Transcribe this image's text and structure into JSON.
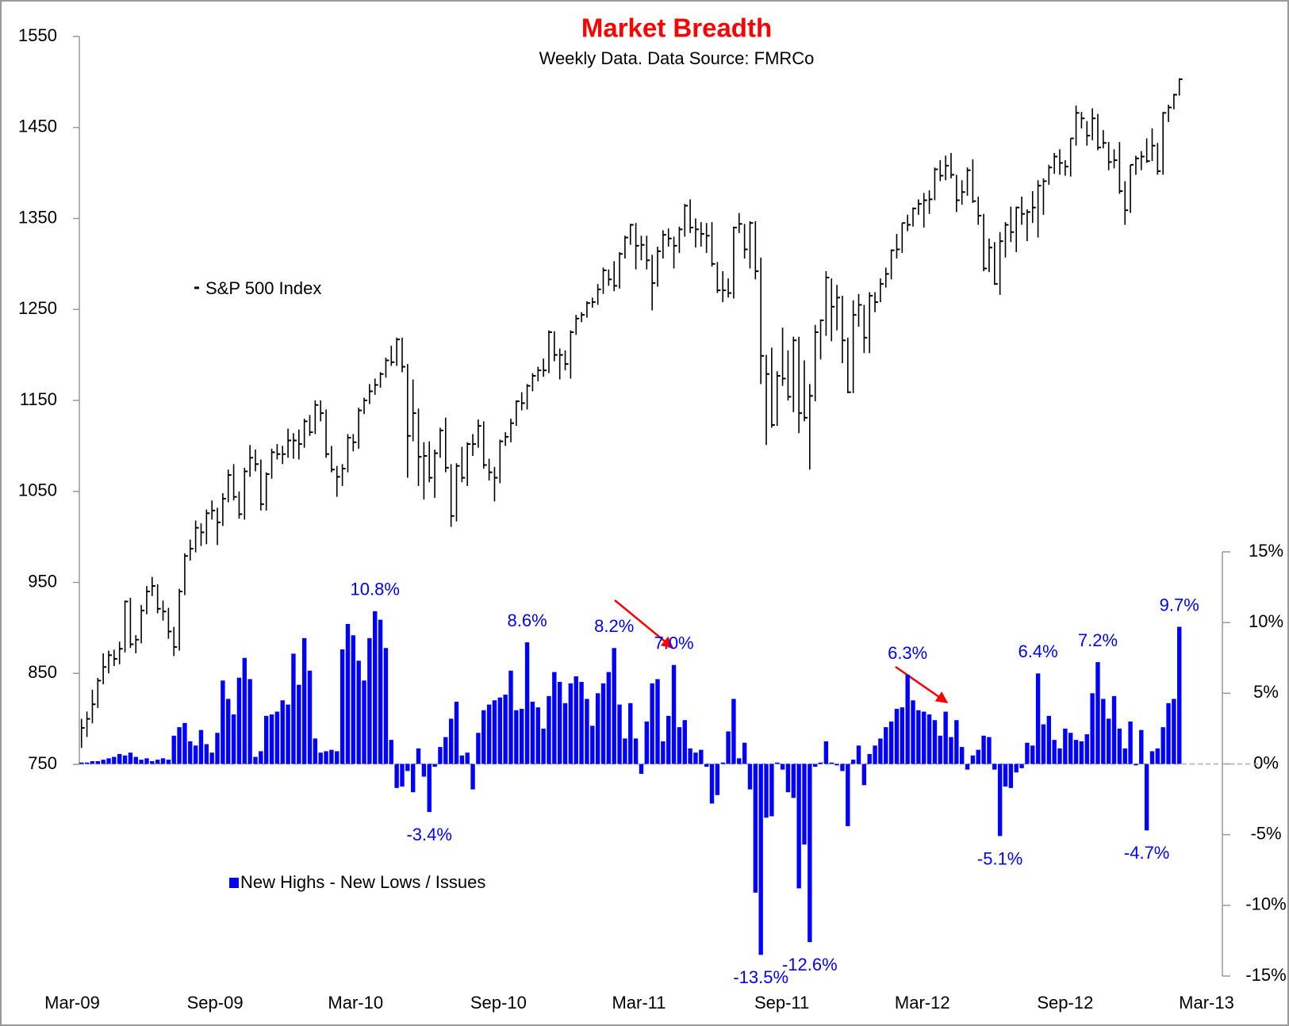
{
  "chart_data": {
    "type": "combo",
    "title": "Market Breadth",
    "subtitle": "Weekly Data. Data Source: FMRCo",
    "xlim": [
      0,
      1461
    ],
    "xticks": [
      {
        "value": 0,
        "label": "Mar-09"
      },
      {
        "value": 184,
        "label": "Sep-09"
      },
      {
        "value": 365,
        "label": "Mar-10"
      },
      {
        "value": 549,
        "label": "Sep-10"
      },
      {
        "value": 730,
        "label": "Mar-11"
      },
      {
        "value": 914,
        "label": "Sep-11"
      },
      {
        "value": 1095,
        "label": "Mar-12"
      },
      {
        "value": 1279,
        "label": "Sep-12"
      },
      {
        "value": 1461,
        "label": "Mar-13"
      }
    ],
    "ylim": [
      750,
      1550
    ],
    "yticks": [
      750,
      850,
      950,
      1050,
      1150,
      1250,
      1350,
      1450,
      1550
    ],
    "y2lim": [
      -15,
      15
    ],
    "y2ticks": [
      {
        "value": 15,
        "label": "15%"
      },
      {
        "value": 10,
        "label": "10%"
      },
      {
        "value": 5,
        "label": "5%"
      },
      {
        "value": 0,
        "label": "0%"
      },
      {
        "value": -5,
        "label": "-5%"
      },
      {
        "value": -10,
        "label": "-10%"
      },
      {
        "value": -15,
        "label": "-15%"
      }
    ],
    "zero_line": true,
    "x": [
      12,
      19,
      26,
      33,
      40,
      47,
      54,
      61,
      68,
      75,
      82,
      89,
      96,
      103,
      110,
      117,
      124,
      131,
      138,
      145,
      152,
      159,
      166,
      173,
      180,
      187,
      194,
      201,
      208,
      215,
      222,
      229,
      236,
      243,
      250,
      257,
      264,
      271,
      278,
      285,
      292,
      299,
      306,
      313,
      320,
      327,
      334,
      341,
      348,
      355,
      362,
      369,
      376,
      383,
      390,
      397,
      404,
      411,
      418,
      425,
      432,
      439,
      446,
      453,
      460,
      467,
      474,
      481,
      488,
      495,
      502,
      509,
      516,
      523,
      530,
      537,
      544,
      551,
      558,
      565,
      572,
      579,
      586,
      593,
      600,
      607,
      614,
      621,
      628,
      635,
      642,
      649,
      656,
      663,
      670,
      677,
      684,
      691,
      698,
      705,
      712,
      719,
      726,
      733,
      740,
      747,
      754,
      761,
      768,
      775,
      782,
      789,
      796,
      803,
      810,
      817,
      824,
      831,
      838,
      845,
      852,
      859,
      866,
      873,
      880,
      887,
      894,
      901,
      908,
      915,
      922,
      929,
      936,
      943,
      950,
      957,
      964,
      971,
      978,
      985,
      992,
      999,
      1006,
      1013,
      1020,
      1027,
      1034,
      1041,
      1048,
      1055,
      1062,
      1069,
      1076,
      1083,
      1090,
      1097,
      1104,
      1111,
      1118,
      1125,
      1132,
      1139,
      1146,
      1153,
      1160,
      1167,
      1174,
      1181,
      1188,
      1195,
      1202,
      1209,
      1216,
      1223,
      1230,
      1237,
      1244,
      1251,
      1258,
      1265,
      1272,
      1279,
      1286,
      1293,
      1300,
      1307,
      1314,
      1321,
      1328,
      1335,
      1342,
      1349,
      1356,
      1363,
      1370,
      1377,
      1384,
      1391,
      1398,
      1405,
      1412,
      1419,
      1426
    ],
    "series": [
      {
        "name": "S&P 500 Index",
        "type": "hlc",
        "color": "#000000",
        "close": [
          790,
          800,
          816,
          842,
          857,
          870,
          866,
          877,
          929,
          882,
          887,
          919,
          940,
          946,
          921,
          918,
          896,
          879,
          940,
          979,
          987,
          1010,
          1005,
          1026,
          1029,
          1016,
          1042,
          1068,
          1044,
          1025,
          1072,
          1087,
          1080,
          1036,
          1069,
          1093,
          1091,
          1091,
          1106,
          1106,
          1102,
          1127,
          1115,
          1145,
          1136,
          1091,
          1074,
          1066,
          1075,
          1109,
          1104,
          1139,
          1150,
          1160,
          1167,
          1179,
          1194,
          1192,
          1217,
          1187,
          1111,
          1136,
          1088,
          1089,
          1065,
          1092,
          1117,
          1076,
          1023,
          1078,
          1065,
          1102,
          1102,
          1122,
          1079,
          1071,
          1065,
          1105,
          1110,
          1125,
          1149,
          1147,
          1166,
          1177,
          1183,
          1183,
          1225,
          1200,
          1200,
          1190,
          1225,
          1240,
          1244,
          1257,
          1258,
          1272,
          1293,
          1283,
          1276,
          1311,
          1329,
          1343,
          1320,
          1321,
          1304,
          1279,
          1314,
          1332,
          1328,
          1320,
          1338,
          1364,
          1340,
          1338,
          1333,
          1331,
          1300,
          1271,
          1271,
          1268,
          1340,
          1344,
          1316,
          1345,
          1292,
          1199,
          1179,
          1123,
          1177,
          1174,
          1154,
          1216,
          1136,
          1131,
          1155,
          1225,
          1238,
          1285,
          1253,
          1263,
          1216,
          1159,
          1244,
          1255,
          1219,
          1265,
          1258,
          1278,
          1289,
          1315,
          1316,
          1345,
          1343,
          1361,
          1366,
          1370,
          1371,
          1404,
          1397,
          1408,
          1398,
          1370,
          1379,
          1403,
          1369,
          1353,
          1295,
          1318,
          1278,
          1325,
          1343,
          1335,
          1362,
          1355,
          1357,
          1362,
          1386,
          1391,
          1406,
          1418,
          1411,
          1407,
          1438,
          1466,
          1460,
          1441,
          1460,
          1428,
          1433,
          1412,
          1414,
          1380,
          1359,
          1409,
          1416,
          1418,
          1413,
          1430,
          1402,
          1466,
          1472,
          1486,
          1503
        ],
        "high": [
          800,
          808,
          832,
          845,
          872,
          875,
          876,
          885,
          930,
          933,
          892,
          925,
          946,
          956,
          948,
          930,
          922,
          901,
          943,
          982,
          997,
          1018,
          1015,
          1030,
          1040,
          1032,
          1048,
          1074,
          1080,
          1050,
          1076,
          1101,
          1096,
          1085,
          1071,
          1097,
          1102,
          1100,
          1119,
          1114,
          1118,
          1130,
          1134,
          1150,
          1150,
          1140,
          1100,
          1078,
          1080,
          1113,
          1113,
          1142,
          1153,
          1168,
          1174,
          1181,
          1197,
          1210,
          1219,
          1219,
          1190,
          1173,
          1141,
          1104,
          1105,
          1096,
          1120,
          1131,
          1080,
          1081,
          1099,
          1104,
          1113,
          1129,
          1127,
          1086,
          1077,
          1107,
          1115,
          1130,
          1150,
          1159,
          1168,
          1180,
          1187,
          1196,
          1227,
          1226,
          1207,
          1205,
          1227,
          1244,
          1247,
          1259,
          1263,
          1278,
          1296,
          1294,
          1303,
          1313,
          1331,
          1344,
          1345,
          1331,
          1331,
          1310,
          1319,
          1337,
          1339,
          1330,
          1341,
          1366,
          1371,
          1350,
          1346,
          1345,
          1346,
          1302,
          1292,
          1284,
          1341,
          1356,
          1344,
          1347,
          1347,
          1307,
          1200,
          1208,
          1182,
          1230,
          1205,
          1220,
          1220,
          1194,
          1168,
          1233,
          1239,
          1292,
          1284,
          1277,
          1265,
          1219,
          1260,
          1267,
          1255,
          1269,
          1269,
          1284,
          1296,
          1316,
          1333,
          1345,
          1354,
          1362,
          1371,
          1378,
          1381,
          1406,
          1414,
          1419,
          1422,
          1398,
          1392,
          1406,
          1415,
          1374,
          1355,
          1328,
          1324,
          1335,
          1346,
          1363,
          1363,
          1374,
          1360,
          1380,
          1392,
          1394,
          1409,
          1422,
          1426,
          1414,
          1438,
          1474,
          1467,
          1457,
          1471,
          1465,
          1447,
          1434,
          1426,
          1434,
          1391,
          1409,
          1419,
          1424,
          1438,
          1449,
          1433,
          1467,
          1475,
          1487,
          1504
        ],
        "low": [
          768,
          780,
          795,
          812,
          838,
          850,
          858,
          860,
          873,
          878,
          872,
          883,
          915,
          935,
          916,
          908,
          888,
          869,
          875,
          936,
          974,
          983,
          990,
          992,
          1019,
          991,
          1012,
          1038,
          1040,
          1020,
          1019,
          1066,
          1072,
          1029,
          1029,
          1064,
          1085,
          1080,
          1087,
          1086,
          1085,
          1098,
          1111,
          1113,
          1127,
          1087,
          1071,
          1044,
          1056,
          1071,
          1094,
          1097,
          1135,
          1146,
          1156,
          1164,
          1175,
          1188,
          1188,
          1181,
          1065,
          1105,
          1056,
          1041,
          1060,
          1043,
          1087,
          1071,
          1011,
          1017,
          1060,
          1056,
          1089,
          1098,
          1075,
          1062,
          1039,
          1059,
          1100,
          1104,
          1122,
          1139,
          1140,
          1160,
          1171,
          1176,
          1180,
          1193,
          1173,
          1183,
          1174,
          1222,
          1236,
          1241,
          1252,
          1255,
          1267,
          1276,
          1270,
          1273,
          1306,
          1321,
          1294,
          1304,
          1294,
          1249,
          1275,
          1306,
          1319,
          1295,
          1312,
          1330,
          1334,
          1318,
          1319,
          1312,
          1297,
          1268,
          1258,
          1263,
          1262,
          1334,
          1306,
          1295,
          1283,
          1168,
          1101,
          1120,
          1122,
          1166,
          1150,
          1137,
          1114,
          1127,
          1074,
          1149,
          1195,
          1221,
          1215,
          1227,
          1191,
          1158,
          1158,
          1231,
          1202,
          1202,
          1247,
          1258,
          1274,
          1283,
          1306,
          1312,
          1336,
          1341,
          1354,
          1340,
          1355,
          1370,
          1391,
          1392,
          1394,
          1357,
          1365,
          1375,
          1367,
          1343,
          1292,
          1291,
          1277,
          1266,
          1307,
          1324,
          1313,
          1343,
          1325,
          1345,
          1329,
          1354,
          1387,
          1399,
          1398,
          1397,
          1396,
          1430,
          1449,
          1430,
          1436,
          1425,
          1427,
          1403,
          1405,
          1377,
          1343,
          1356,
          1398,
          1403,
          1411,
          1413,
          1398,
          1398,
          1456,
          1470,
          1485
        ]
      },
      {
        "name": "New Highs - New Lows / Issues",
        "type": "bar",
        "axis": "y2",
        "color": "#0000ff",
        "values": [
          0.1,
          0.1,
          0.2,
          0.2,
          0.3,
          0.4,
          0.5,
          0.7,
          0.6,
          0.8,
          0.5,
          0.3,
          0.4,
          0.2,
          0.3,
          0.4,
          0.3,
          2.0,
          2.6,
          2.9,
          1.6,
          1.3,
          2.4,
          1.4,
          0.8,
          2.2,
          5.9,
          4.6,
          3.5,
          6.1,
          7.5,
          6.0,
          0.5,
          0.9,
          3.4,
          3.5,
          3.7,
          4.5,
          4.2,
          7.8,
          5.6,
          8.9,
          6.6,
          1.8,
          0.8,
          0.9,
          1.0,
          0.9,
          8.1,
          9.9,
          9.1,
          7.3,
          5.9,
          8.9,
          10.8,
          10.2,
          8.2,
          1.7,
          -1.7,
          -1.6,
          -0.5,
          -2.0,
          1.1,
          -0.9,
          -3.4,
          -0.2,
          1.2,
          1.9,
          3.2,
          4.4,
          0.6,
          0.8,
          -1.8,
          2.2,
          3.8,
          4.2,
          4.5,
          4.7,
          4.9,
          6.6,
          3.8,
          3.9,
          8.6,
          4.4,
          4.0,
          2.5,
          4.8,
          6.5,
          5.8,
          4.3,
          5.7,
          6.2,
          5.8,
          4.6,
          2.7,
          5.0,
          5.7,
          6.5,
          8.2,
          4.2,
          1.8,
          4.3,
          1.8,
          -0.7,
          3.0,
          5.7,
          6.0,
          1.6,
          3.4,
          7.0,
          2.6,
          3.1,
          1.1,
          0.8,
          1.0,
          -0.2,
          -2.8,
          -2.2,
          0.1,
          2.3,
          4.6,
          0.4,
          1.5,
          -1.8,
          -9.1,
          -13.5,
          -3.8,
          -3.7,
          0.1,
          -0.4,
          -2.0,
          -2.4,
          -8.8,
          -5.7,
          -12.6,
          -0.2,
          0.1,
          1.6,
          0.1,
          -0.1,
          -0.5,
          -4.4,
          0.3,
          1.3,
          -1.5,
          0.7,
          1.3,
          1.8,
          2.6,
          3.0,
          3.9,
          4.0,
          6.3,
          4.5,
          3.8,
          3.7,
          3.5,
          3.1,
          2.0,
          3.7,
          1.9,
          3.1,
          1.2,
          -0.4,
          0.6,
          1.0,
          2.0,
          1.9,
          -0.4,
          -5.1,
          -1.6,
          -1.7,
          -0.6,
          -0.3,
          1.5,
          1.3,
          6.4,
          2.8,
          3.4,
          1.7,
          1.1,
          2.5,
          2.2,
          1.7,
          1.6,
          2.1,
          5.0,
          7.2,
          4.6,
          3.2,
          4.8,
          2.5,
          1.1,
          3.0,
          -0.1,
          2.4,
          -4.7,
          0.9,
          1.1,
          2.6,
          4.3,
          4.6,
          9.7
        ],
        "value_labels": {
          "54": "10.8%",
          "64": "-3.4%",
          "82": "8.6%",
          "98": "8.2%",
          "109": "7.0%",
          "125": "-13.5%",
          "134": "-12.6%",
          "152": "6.3%",
          "169": "-5.1%",
          "176": "6.4%",
          "187": "7.2%",
          "196": "-4.7%",
          "202": "9.7%"
        }
      }
    ]
  }
}
